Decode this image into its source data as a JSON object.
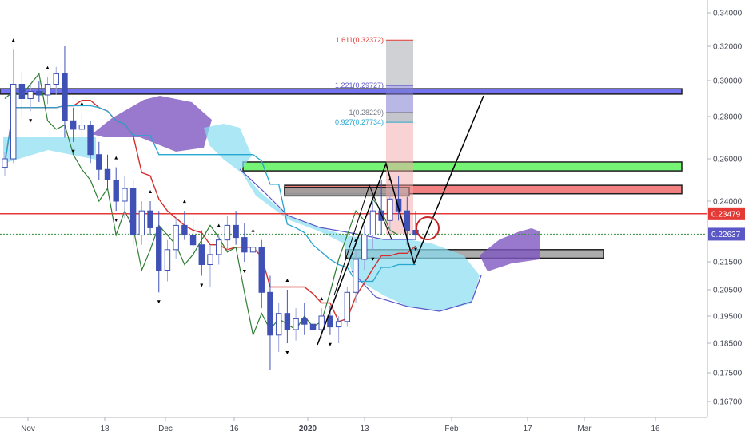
{
  "chart_data": {
    "type": "candlestick",
    "title": "",
    "price_axis": {
      "ticks": [
        "0.34000",
        "0.32000",
        "0.30000",
        "0.28000",
        "0.26000",
        "0.24000",
        "0.21500",
        "0.20500",
        "0.19500",
        "0.18500",
        "0.17500",
        "0.16700"
      ],
      "range": [
        0.163,
        0.348
      ]
    },
    "time_axis": {
      "labels": [
        "Nov",
        "18",
        "Dec",
        "16",
        "2020",
        "13",
        "Feb",
        "17",
        "Mar",
        "16"
      ]
    },
    "price_tags": [
      {
        "value": "0.23479",
        "color": "#e53935"
      },
      {
        "value": "0.22637",
        "color": "#5b57c6"
      }
    ],
    "horizontal_lines": [
      {
        "price": 0.2348,
        "color": "#e53935"
      },
      {
        "price": 0.2264,
        "color": "#388e3c",
        "style": "dotted"
      }
    ],
    "fibonacci": [
      {
        "label": "1.611(0.32372)",
        "price": 0.3237,
        "color": "#e53935"
      },
      {
        "label": "1.221(0.29727)",
        "price": 0.2973,
        "color": "#5b57c6"
      },
      {
        "label": "1(0.28229)",
        "price": 0.2823,
        "color": "#787b86"
      },
      {
        "label": "0.927(0.27734)",
        "price": 0.2773,
        "color": "#26a6d1"
      }
    ],
    "zones": [
      {
        "color": "#5b5bf0",
        "price_top": 0.2955,
        "price_bottom": 0.2925
      },
      {
        "color": "#5df25d",
        "price_top": 0.2585,
        "price_bottom": 0.2543
      },
      {
        "color": "#f26b6b",
        "price_top": 0.2475,
        "price_bottom": 0.2435
      },
      {
        "color": "#9e9e9e",
        "price_top": 0.2465,
        "price_bottom": 0.2425
      },
      {
        "color": "#9e9e9e",
        "price_top": 0.22,
        "price_bottom": 0.2165
      }
    ],
    "ohlc": [
      [
        0.256,
        0.263,
        0.252,
        0.26
      ],
      [
        0.26,
        0.318,
        0.258,
        0.298
      ],
      [
        0.298,
        0.305,
        0.28,
        0.29
      ],
      [
        0.29,
        0.298,
        0.283,
        0.294
      ],
      [
        0.294,
        0.3,
        0.288,
        0.292
      ],
      [
        0.292,
        0.302,
        0.287,
        0.298
      ],
      [
        0.298,
        0.308,
        0.292,
        0.304
      ],
      [
        0.304,
        0.32,
        0.27,
        0.278
      ],
      [
        0.278,
        0.285,
        0.268,
        0.274
      ],
      [
        0.274,
        0.282,
        0.27,
        0.276
      ],
      [
        0.276,
        0.278,
        0.258,
        0.262
      ],
      [
        0.262,
        0.268,
        0.25,
        0.255
      ],
      [
        0.255,
        0.262,
        0.246,
        0.25
      ],
      [
        0.25,
        0.256,
        0.236,
        0.24
      ],
      [
        0.24,
        0.252,
        0.233,
        0.246
      ],
      [
        0.246,
        0.25,
        0.222,
        0.226
      ],
      [
        0.226,
        0.24,
        0.222,
        0.236
      ],
      [
        0.236,
        0.24,
        0.226,
        0.229
      ],
      [
        0.229,
        0.236,
        0.204,
        0.212
      ],
      [
        0.212,
        0.224,
        0.208,
        0.22
      ],
      [
        0.22,
        0.233,
        0.216,
        0.23
      ],
      [
        0.23,
        0.236,
        0.224,
        0.226
      ],
      [
        0.226,
        0.233,
        0.218,
        0.222
      ],
      [
        0.222,
        0.228,
        0.21,
        0.214
      ],
      [
        0.214,
        0.222,
        0.206,
        0.218
      ],
      [
        0.218,
        0.226,
        0.214,
        0.224
      ],
      [
        0.224,
        0.234,
        0.22,
        0.23
      ],
      [
        0.23,
        0.236,
        0.222,
        0.225
      ],
      [
        0.225,
        0.231,
        0.215,
        0.219
      ],
      [
        0.219,
        0.224,
        0.212,
        0.221
      ],
      [
        0.221,
        0.224,
        0.198,
        0.204
      ],
      [
        0.204,
        0.21,
        0.176,
        0.188
      ],
      [
        0.188,
        0.2,
        0.182,
        0.196
      ],
      [
        0.196,
        0.205,
        0.185,
        0.19
      ],
      [
        0.19,
        0.198,
        0.186,
        0.194
      ],
      [
        0.194,
        0.2,
        0.188,
        0.192
      ],
      [
        0.192,
        0.196,
        0.186,
        0.19
      ],
      [
        0.19,
        0.198,
        0.187,
        0.195
      ],
      [
        0.195,
        0.199,
        0.188,
        0.191
      ],
      [
        0.191,
        0.195,
        0.185,
        0.193
      ],
      [
        0.193,
        0.206,
        0.191,
        0.204
      ],
      [
        0.204,
        0.22,
        0.2,
        0.216
      ],
      [
        0.216,
        0.23,
        0.212,
        0.226
      ],
      [
        0.226,
        0.24,
        0.22,
        0.236
      ],
      [
        0.236,
        0.25,
        0.226,
        0.232
      ],
      [
        0.232,
        0.246,
        0.228,
        0.241
      ],
      [
        0.241,
        0.252,
        0.232,
        0.236
      ],
      [
        0.236,
        0.242,
        0.222,
        0.228
      ],
      [
        0.228,
        0.236,
        0.224,
        0.226
      ]
    ],
    "series": [
      {
        "type": "line",
        "color": "#d32f2f"
      },
      {
        "type": "line",
        "color": "#26a6d1"
      },
      {
        "type": "line",
        "color": "#2e7d32"
      },
      {
        "type": "cloud",
        "color": "#87ddef"
      }
    ],
    "grid": false
  }
}
